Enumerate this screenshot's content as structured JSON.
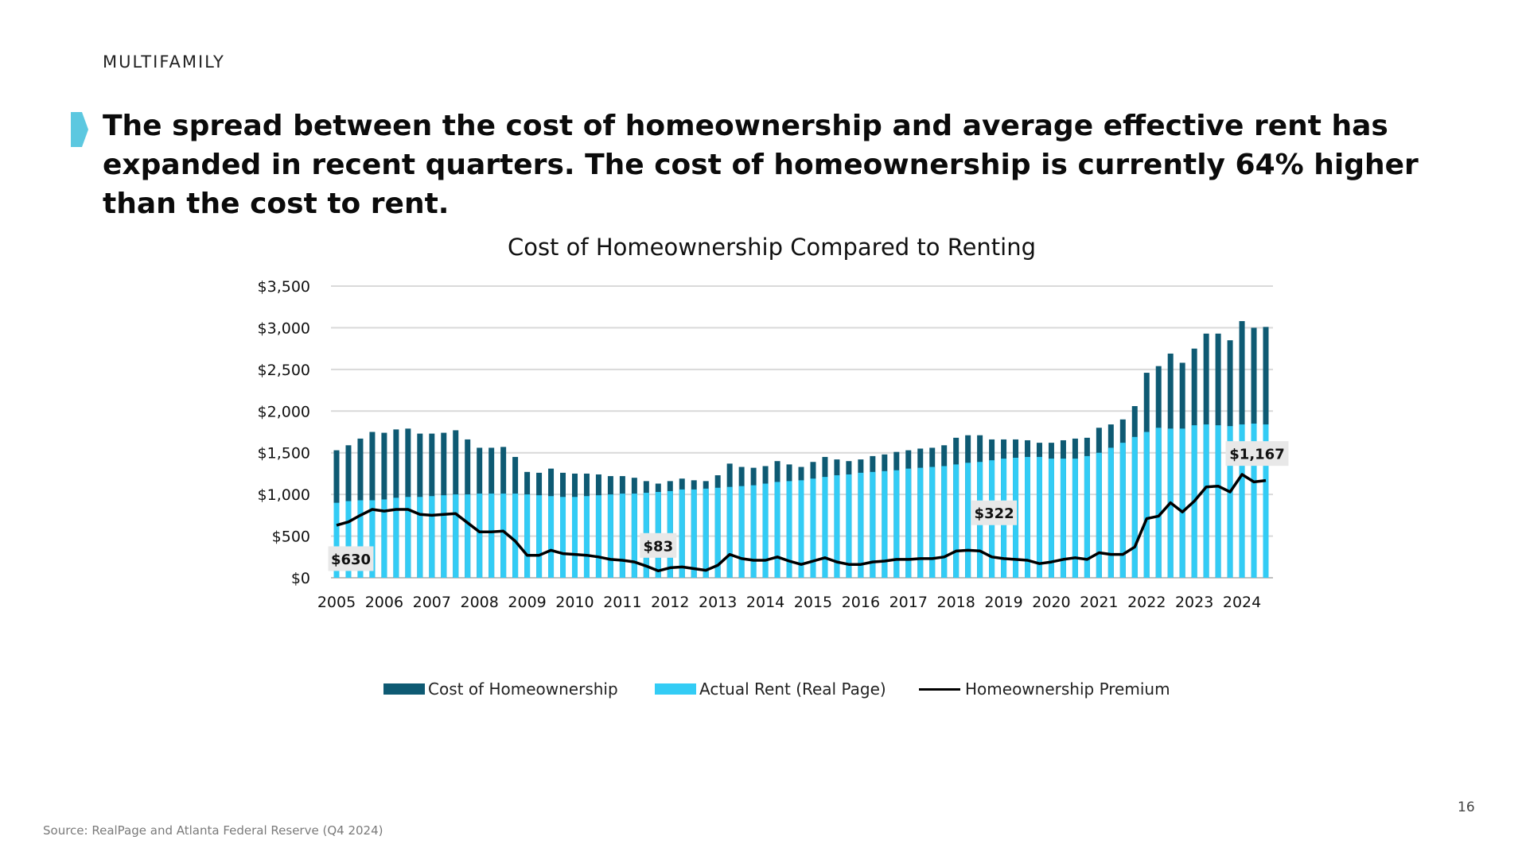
{
  "section_label": "MULTIFAMILY",
  "headline": "The spread between the cost of homeownership and average effective rent has expanded in recent quarters. The cost of homeownership is currently 64% higher than the cost to rent.",
  "source": "Source: RealPage and Atlanta Federal Reserve (Q4 2024)",
  "page_number": "16",
  "colors": {
    "accent": "#5cc8e0",
    "homeownership": "#0e5a73",
    "rent": "#33ccf5",
    "premium": "#000000",
    "grid": "#d9d9d9"
  },
  "icons": {
    "headline_marker": "chevron-marker-icon"
  },
  "chart_data": {
    "type": "bar",
    "title": "Cost of Homeownership Compared to Renting",
    "xlabel": "",
    "ylabel": "",
    "ylim": [
      0,
      3500
    ],
    "y_ticks": [
      0,
      500,
      1000,
      1500,
      2000,
      2500,
      3000,
      3500
    ],
    "y_tick_labels": [
      "$0",
      "$500",
      "$1,000",
      "$1,500",
      "$2,000",
      "$2,500",
      "$3,000",
      "$3,500"
    ],
    "x_tick_labels": [
      "2005",
      "2006",
      "2007",
      "2008",
      "2009",
      "2010",
      "2011",
      "2012",
      "2013",
      "2014",
      "2015",
      "2016",
      "2017",
      "2018",
      "2019",
      "2020",
      "2021",
      "2022",
      "2023",
      "2024"
    ],
    "grid": true,
    "legend_position": "bottom",
    "series": [
      {
        "name": "Cost of Homeownership",
        "kind": "bar-back",
        "values": [
          1530,
          1590,
          1670,
          1750,
          1740,
          1780,
          1790,
          1730,
          1730,
          1740,
          1770,
          1660,
          1560,
          1560,
          1570,
          1450,
          1270,
          1260,
          1310,
          1260,
          1250,
          1250,
          1240,
          1220,
          1220,
          1200,
          1160,
          1130,
          1160,
          1190,
          1170,
          1160,
          1230,
          1370,
          1330,
          1320,
          1340,
          1400,
          1360,
          1330,
          1390,
          1450,
          1420,
          1400,
          1420,
          1460,
          1480,
          1510,
          1530,
          1550,
          1560,
          1590,
          1680,
          1710,
          1710,
          1660,
          1660,
          1660,
          1650,
          1620,
          1620,
          1650,
          1670,
          1680,
          1800,
          1840,
          1900,
          2060,
          2460,
          2540,
          2690,
          2580,
          2750,
          2930,
          2930,
          2850,
          3080,
          3000,
          3010
        ]
      },
      {
        "name": "Actual Rent (Real Page)",
        "kind": "bar-front",
        "values": [
          900,
          920,
          930,
          930,
          940,
          960,
          970,
          970,
          980,
          990,
          1000,
          1000,
          1010,
          1010,
          1010,
          1010,
          1000,
          990,
          980,
          970,
          970,
          980,
          990,
          1000,
          1010,
          1010,
          1020,
          1030,
          1040,
          1060,
          1060,
          1070,
          1080,
          1090,
          1100,
          1110,
          1130,
          1150,
          1160,
          1170,
          1190,
          1210,
          1230,
          1240,
          1260,
          1270,
          1280,
          1290,
          1310,
          1320,
          1330,
          1340,
          1360,
          1380,
          1390,
          1410,
          1430,
          1440,
          1450,
          1450,
          1430,
          1430,
          1430,
          1460,
          1500,
          1560,
          1620,
          1690,
          1750,
          1800,
          1790,
          1790,
          1830,
          1840,
          1830,
          1820,
          1840,
          1850,
          1840
        ]
      },
      {
        "name": "Homeownership Premium",
        "kind": "line",
        "values": [
          630,
          670,
          750,
          820,
          800,
          820,
          820,
          760,
          750,
          760,
          770,
          660,
          550,
          550,
          560,
          440,
          270,
          270,
          330,
          290,
          280,
          270,
          250,
          220,
          210,
          190,
          140,
          83,
          120,
          130,
          110,
          90,
          150,
          280,
          230,
          210,
          210,
          250,
          200,
          160,
          200,
          240,
          190,
          160,
          160,
          190,
          200,
          220,
          220,
          230,
          230,
          250,
          320,
          330,
          322,
          250,
          230,
          220,
          210,
          170,
          190,
          220,
          240,
          220,
          300,
          280,
          280,
          370,
          710,
          740,
          900,
          790,
          920,
          1090,
          1100,
          1030,
          1240,
          1150,
          1167
        ]
      }
    ],
    "callouts": [
      {
        "label": "$630",
        "index": 0
      },
      {
        "label": "$83",
        "index": 27
      },
      {
        "label": "$322",
        "index": 54
      },
      {
        "label": "$1,167",
        "index": 78
      }
    ]
  }
}
